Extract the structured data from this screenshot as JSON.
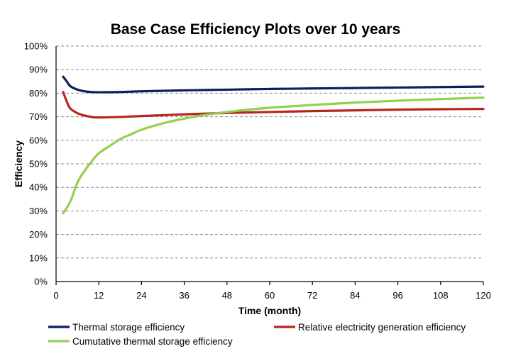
{
  "chart_data": {
    "type": "line",
    "title": "Base Case Efficiency Plots over 10 years",
    "xlabel": "Time (month)",
    "ylabel": "Efficiency",
    "xlim": [
      0,
      120
    ],
    "ylim": [
      0,
      1
    ],
    "x_ticks": [
      "0",
      "12",
      "24",
      "36",
      "48",
      "60",
      "72",
      "84",
      "96",
      "108",
      "120"
    ],
    "y_ticks": [
      "0%",
      "10%",
      "20%",
      "30%",
      "40%",
      "50%",
      "60%",
      "70%",
      "80%",
      "90%",
      "100%"
    ],
    "grid": true,
    "legend_position": "bottom",
    "series": [
      {
        "name": "Thermal storage efficiency",
        "color": "#0d1f5c",
        "x": [
          2,
          3,
          4,
          6,
          8,
          10,
          12,
          18,
          24,
          36,
          48,
          60,
          72,
          84,
          96,
          108,
          120
        ],
        "y": [
          0.87,
          0.85,
          0.83,
          0.815,
          0.808,
          0.805,
          0.804,
          0.805,
          0.808,
          0.812,
          0.815,
          0.818,
          0.82,
          0.822,
          0.824,
          0.826,
          0.828
        ]
      },
      {
        "name": "Relative electricity generation efficiency",
        "color": "#b5261e",
        "x": [
          2,
          3,
          4,
          6,
          8,
          10,
          12,
          18,
          24,
          36,
          48,
          60,
          72,
          84,
          96,
          108,
          120
        ],
        "y": [
          0.805,
          0.765,
          0.735,
          0.715,
          0.705,
          0.699,
          0.697,
          0.699,
          0.703,
          0.71,
          0.716,
          0.72,
          0.724,
          0.727,
          0.73,
          0.732,
          0.733
        ]
      },
      {
        "name": "Cumutative thermal storage efficiency",
        "color": "#92d050",
        "x": [
          2,
          4,
          6,
          8,
          10,
          12,
          15,
          18,
          21,
          24,
          30,
          36,
          42,
          48,
          54,
          60,
          72,
          84,
          96,
          108,
          120
        ],
        "y": [
          0.29,
          0.34,
          0.42,
          0.47,
          0.51,
          0.545,
          0.575,
          0.605,
          0.625,
          0.645,
          0.672,
          0.692,
          0.708,
          0.72,
          0.73,
          0.738,
          0.75,
          0.76,
          0.768,
          0.775,
          0.781
        ]
      }
    ]
  }
}
